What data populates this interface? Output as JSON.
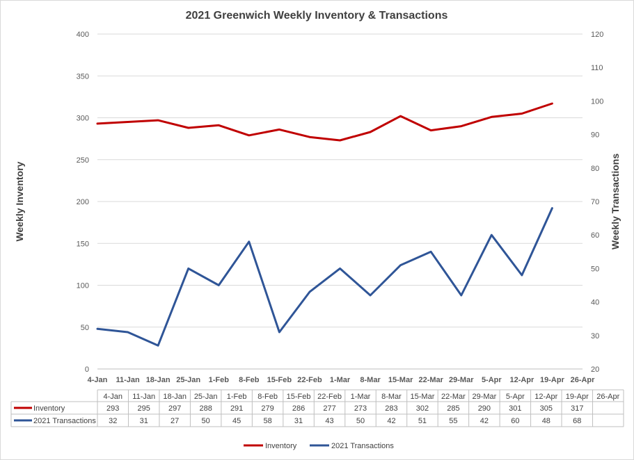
{
  "chart_data": {
    "type": "line",
    "title": "2021 Greenwich Weekly Inventory & Transactions",
    "ylabel_left": "Weekly Inventory",
    "ylabel_right": "Weekly Transactions",
    "ylim_left": [
      0,
      400
    ],
    "ylim_right": [
      20,
      120
    ],
    "yticks_left": [
      0,
      50,
      100,
      150,
      200,
      250,
      300,
      350,
      400
    ],
    "yticks_right": [
      20,
      30,
      40,
      50,
      60,
      70,
      80,
      90,
      100,
      110,
      120
    ],
    "grid": true,
    "legend_position": "bottom",
    "categories": [
      "4-Jan",
      "11-Jan",
      "18-Jan",
      "25-Jan",
      "1-Feb",
      "8-Feb",
      "15-Feb",
      "22-Feb",
      "1-Mar",
      "8-Mar",
      "15-Mar",
      "22-Mar",
      "29-Mar",
      "5-Apr",
      "12-Apr",
      "19-Apr",
      "26-Apr"
    ],
    "series": [
      {
        "name": "Inventory",
        "axis": "left",
        "color": "#c00000",
        "values": [
          293,
          295,
          297,
          288,
          291,
          279,
          286,
          277,
          273,
          283,
          302,
          285,
          290,
          301,
          305,
          317,
          null
        ]
      },
      {
        "name": "2021 Transactions",
        "axis": "right",
        "color": "#2f5597",
        "values": [
          32,
          31,
          27,
          50,
          45,
          58,
          31,
          43,
          50,
          42,
          51,
          55,
          42,
          60,
          48,
          68,
          null
        ]
      }
    ]
  }
}
